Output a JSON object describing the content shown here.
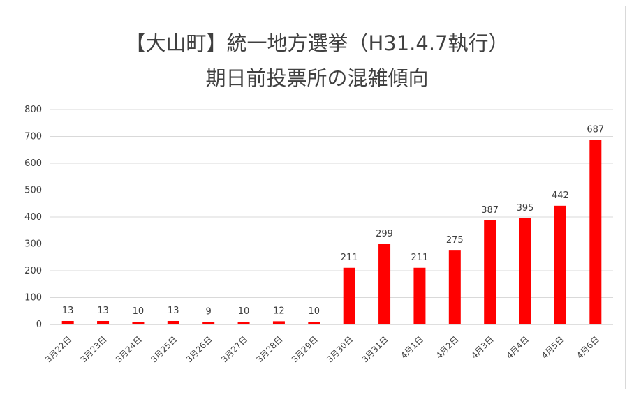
{
  "chart_data": {
    "type": "bar",
    "title_line1": "【大山町】統一地方選挙（H31.4.7執行）",
    "title_line2": "期日前投票所の混雑傾向",
    "categories": [
      "3月22日",
      "3月23日",
      "3月24日",
      "3月25日",
      "3月26日",
      "3月27日",
      "3月28日",
      "3月29日",
      "3月30日",
      "3月31日",
      "4月1日",
      "4月2日",
      "4月3日",
      "4月4日",
      "4月5日",
      "4月6日"
    ],
    "values": [
      13,
      13,
      10,
      13,
      9,
      10,
      12,
      10,
      211,
      299,
      211,
      275,
      387,
      395,
      442,
      687
    ],
    "ylim": [
      0,
      800
    ],
    "yticks": [
      0,
      100,
      200,
      300,
      400,
      500,
      600,
      700,
      800
    ],
    "grid": true,
    "bar_color": "#ff0000",
    "data_labels": true
  }
}
